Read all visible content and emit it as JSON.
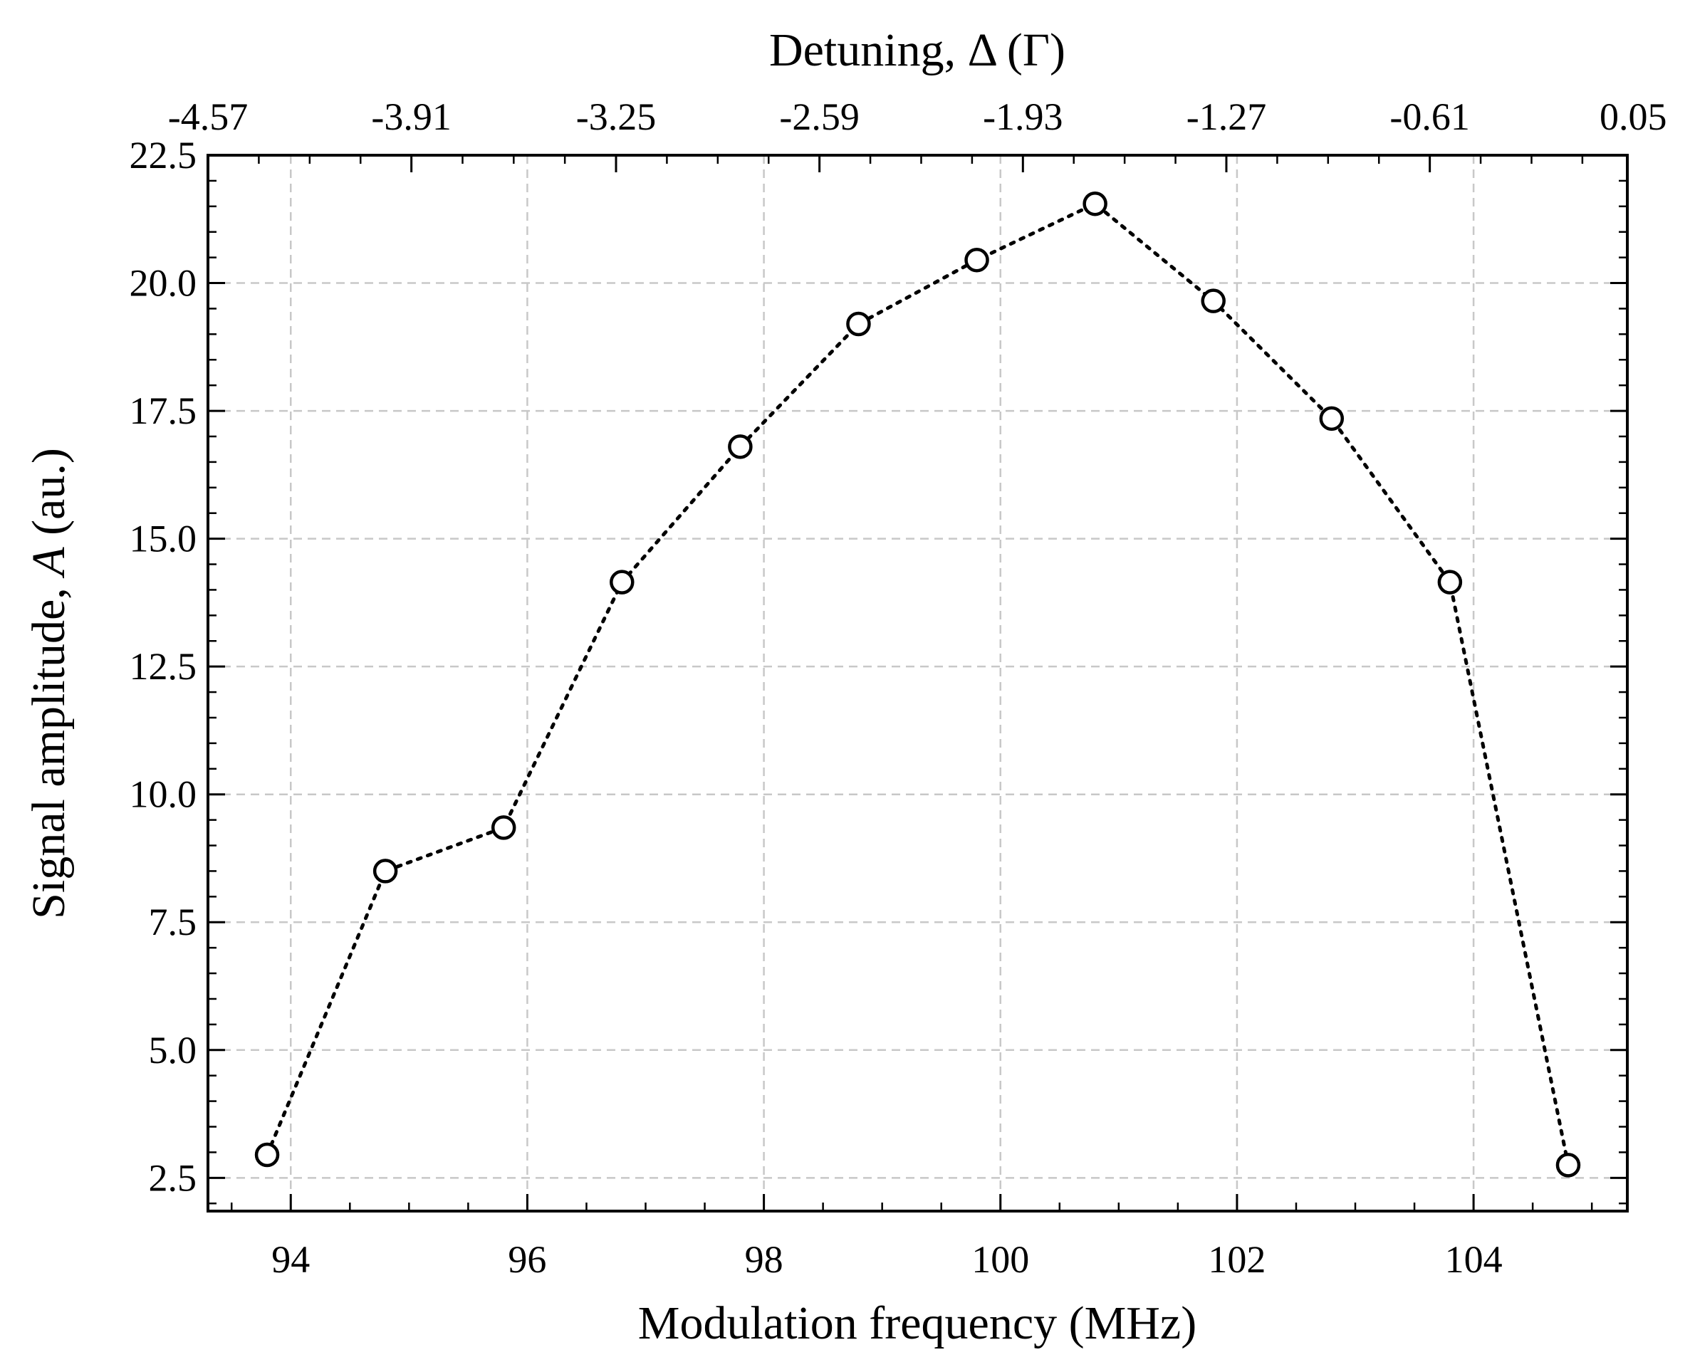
{
  "chart_data": {
    "type": "line",
    "xlabel": "Modulation frequency (MHz)",
    "ylabel_prefix": "Signal amplitude, ",
    "ylabel_symbol": "A",
    "ylabel_suffix": " (au.)",
    "top_xlabel": "Detuning, Δ (Γ)",
    "xlim": [
      93.3,
      105.3
    ],
    "ylim": [
      1.85,
      22.5
    ],
    "x_ticks": [
      94,
      96,
      98,
      100,
      102,
      104
    ],
    "x_tick_labels": [
      "94",
      "96",
      "98",
      "100",
      "102",
      "104"
    ],
    "y_ticks": [
      2.5,
      5.0,
      7.5,
      10.0,
      12.5,
      15.0,
      17.5,
      20.0,
      22.5
    ],
    "y_tick_labels": [
      "2.5",
      "5.0",
      "7.5",
      "10.0",
      "12.5",
      "15.0",
      "17.5",
      "20.0",
      "22.5"
    ],
    "top_ticks": [
      93.3,
      95.02,
      96.75,
      98.47,
      100.19,
      101.91,
      103.63,
      105.35
    ],
    "top_tick_labels": [
      "-4.57",
      "-3.91",
      "-3.25",
      "-2.59",
      "-1.93",
      "-1.27",
      "-0.61",
      "0.05"
    ],
    "grid": true,
    "line_style": "dotted",
    "marker": "open-circle",
    "color": "#000000",
    "x": [
      93.8,
      94.8,
      95.8,
      96.8,
      97.8,
      98.8,
      99.8,
      100.8,
      101.8,
      102.8,
      103.8,
      104.8
    ],
    "y": [
      2.95,
      8.5,
      9.35,
      14.15,
      16.8,
      19.2,
      20.45,
      21.55,
      19.65,
      17.35,
      14.15,
      2.75
    ]
  }
}
